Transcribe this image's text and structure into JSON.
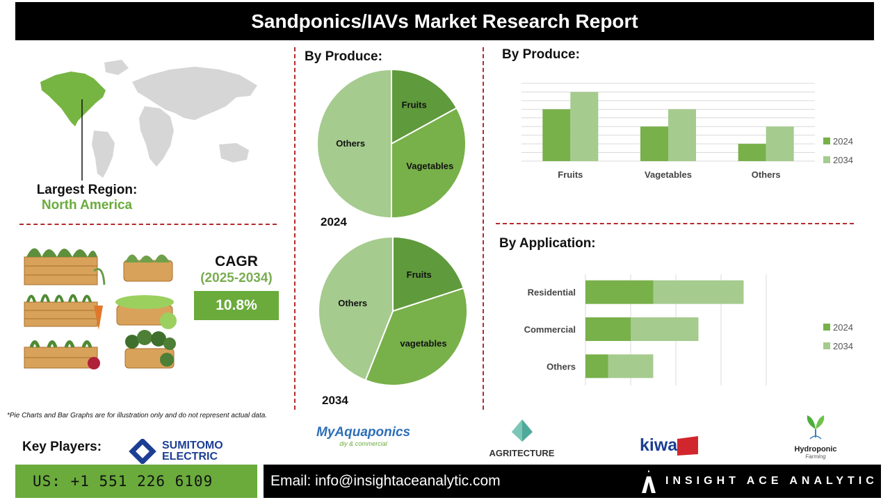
{
  "header": {
    "title": "Sandponics/IAVs Market Research Report"
  },
  "region": {
    "label": "Largest Region:",
    "value": "North America"
  },
  "cagr": {
    "label": "CAGR",
    "period": "(2025-2034)",
    "value": "10.8%"
  },
  "disclaimer": "*Pie Charts and Bar Graphs are for illustration only and do not represent actual data.",
  "key_players": {
    "label": "Key Players:",
    "logos": [
      {
        "name": "SUMITOMO",
        "line2": "ELECTRIC"
      },
      {
        "name": "MyAquaponics",
        "tagline": "diy & commercial"
      },
      {
        "name": "AGRITECTURE"
      },
      {
        "name": "kiwa"
      },
      {
        "name": "Hydroponic",
        "tagline": "Farming"
      }
    ]
  },
  "footer": {
    "phone": "US: +1 551 226 6109",
    "email": "Email: info@insightaceanalytic.com",
    "brand": "INSIGHT ACE ANALYTIC"
  },
  "colors": {
    "dark_green": "#5f9a3c",
    "mid_green": "#78b04a",
    "light_green": "#a5cb8e",
    "accent_red": "#b22a2a"
  },
  "chart_data": [
    {
      "type": "pie",
      "title": "By Produce:",
      "year_label": "2024",
      "slices": [
        {
          "label": "Fruits",
          "value": 17
        },
        {
          "label": "Vagetables",
          "value": 33
        },
        {
          "label": "Others",
          "value": 50
        }
      ]
    },
    {
      "type": "pie",
      "year_label": "2034",
      "slices": [
        {
          "label": "Fruits",
          "value": 20
        },
        {
          "label": "vagetables",
          "value": 36
        },
        {
          "label": "Others",
          "value": 44
        }
      ]
    },
    {
      "type": "bar",
      "title": "By Produce:",
      "categories": [
        "Fruits",
        "Vagetables",
        "Others"
      ],
      "series": [
        {
          "name": "2024",
          "values": [
            3,
            2,
            1
          ]
        },
        {
          "name": "2034",
          "values": [
            4,
            3,
            2
          ]
        }
      ],
      "ylim": [
        0,
        4.5
      ],
      "grid": true,
      "legend": "right"
    },
    {
      "type": "bar",
      "orientation": "horizontal",
      "stacked": true,
      "title": "By Application:",
      "categories": [
        "Residential",
        "Commercial",
        "Others"
      ],
      "series": [
        {
          "name": "2024",
          "values": [
            3,
            2,
            1
          ]
        },
        {
          "name": "2034",
          "values": [
            4,
            3,
            2
          ]
        }
      ],
      "xlim": [
        0,
        8
      ],
      "grid": true,
      "legend": "right"
    }
  ]
}
